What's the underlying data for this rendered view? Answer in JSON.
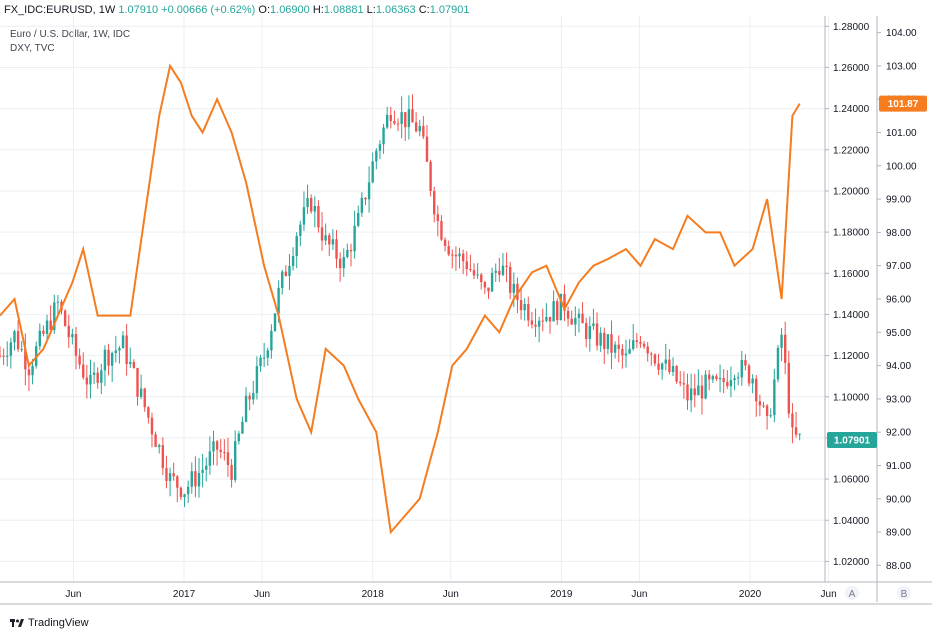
{
  "header": {
    "symbol": "FX_IDC:EURUSD, 1W",
    "price": "1.07910",
    "change": "+0.00666 (+0.62%)",
    "o_label": "O:",
    "o": "1.06900",
    "h_label": "H:",
    "h": "1.08881",
    "l_label": "L:",
    "l": "1.06363",
    "c_label": "C:",
    "c": "1.07901"
  },
  "legend": {
    "main": "Euro / U.S. Dollar, 1W, IDC",
    "overlay": "DXY, TVC"
  },
  "footer": {
    "brand": "TradingView"
  },
  "scale_buttons": {
    "a": "A",
    "b": "B"
  },
  "colors": {
    "up": "#26a69a",
    "down": "#ef5350",
    "dxy": "#f57c1f",
    "grid": "#eceff2"
  },
  "last_labels": {
    "eurusd": "1.07901",
    "dxy": "101.87"
  },
  "chart_data": {
    "type": "candlestick+line",
    "x_range": [
      "2016-01-11",
      "2020-05-25"
    ],
    "x_ticks": [
      {
        "date": "2016-06-01",
        "label": "Jun"
      },
      {
        "date": "2017-01-01",
        "label": "2017"
      },
      {
        "date": "2017-06-01",
        "label": "Jun"
      },
      {
        "date": "2018-01-01",
        "label": "2018"
      },
      {
        "date": "2018-06-01",
        "label": "Jun"
      },
      {
        "date": "2019-01-01",
        "label": "2019"
      },
      {
        "date": "2019-06-01",
        "label": "Jun"
      },
      {
        "date": "2020-01-01",
        "label": "2020"
      },
      {
        "date": "2020-06-01",
        "label": "Jun"
      }
    ],
    "eurusd_axis": {
      "range": [
        1.01,
        1.285
      ],
      "ticks": [
        "1.28000",
        "1.26000",
        "1.24000",
        "1.22000",
        "1.20000",
        "1.18000",
        "1.16000",
        "1.14000",
        "1.12000",
        "1.10000",
        "1.08000",
        "1.06000",
        "1.04000",
        "1.02000"
      ]
    },
    "dxy_axis": {
      "range": [
        87.5,
        104.5
      ],
      "ticks": [
        "104.00",
        "103.00",
        "102.00",
        "101.00",
        "100.00",
        "99.00",
        "98.00",
        "97.00",
        "96.00",
        "95.00",
        "94.00",
        "93.00",
        "92.00",
        "91.00",
        "90.00",
        "89.00",
        "88.00"
      ]
    },
    "eurusd_close": [
      {
        "date": "2016-01-11",
        "value": 1.12
      },
      {
        "date": "2016-02-08",
        "value": 1.13
      },
      {
        "date": "2016-03-07",
        "value": 1.115
      },
      {
        "date": "2016-04-04",
        "value": 1.13
      },
      {
        "date": "2016-05-02",
        "value": 1.145
      },
      {
        "date": "2016-06-06",
        "value": 1.12
      },
      {
        "date": "2016-07-04",
        "value": 1.105
      },
      {
        "date": "2016-08-01",
        "value": 1.12
      },
      {
        "date": "2016-09-05",
        "value": 1.125
      },
      {
        "date": "2016-10-03",
        "value": 1.105
      },
      {
        "date": "2016-11-07",
        "value": 1.08
      },
      {
        "date": "2016-12-05",
        "value": 1.06
      },
      {
        "date": "2017-01-02",
        "value": 1.055
      },
      {
        "date": "2017-02-06",
        "value": 1.065
      },
      {
        "date": "2017-03-06",
        "value": 1.075
      },
      {
        "date": "2017-04-03",
        "value": 1.065
      },
      {
        "date": "2017-05-01",
        "value": 1.095
      },
      {
        "date": "2017-06-05",
        "value": 1.12
      },
      {
        "date": "2017-07-03",
        "value": 1.15
      },
      {
        "date": "2017-08-07",
        "value": 1.18
      },
      {
        "date": "2017-09-04",
        "value": 1.195
      },
      {
        "date": "2017-10-02",
        "value": 1.175
      },
      {
        "date": "2017-11-06",
        "value": 1.165
      },
      {
        "date": "2017-12-04",
        "value": 1.185
      },
      {
        "date": "2018-01-08",
        "value": 1.22
      },
      {
        "date": "2018-02-05",
        "value": 1.24
      },
      {
        "date": "2018-03-05",
        "value": 1.235
      },
      {
        "date": "2018-04-02",
        "value": 1.23
      },
      {
        "date": "2018-05-07",
        "value": 1.185
      },
      {
        "date": "2018-06-04",
        "value": 1.17
      },
      {
        "date": "2018-07-02",
        "value": 1.165
      },
      {
        "date": "2018-08-06",
        "value": 1.15
      },
      {
        "date": "2018-09-03",
        "value": 1.165
      },
      {
        "date": "2018-10-01",
        "value": 1.15
      },
      {
        "date": "2018-11-05",
        "value": 1.14
      },
      {
        "date": "2018-12-03",
        "value": 1.14
      },
      {
        "date": "2019-01-07",
        "value": 1.145
      },
      {
        "date": "2019-02-04",
        "value": 1.135
      },
      {
        "date": "2019-03-04",
        "value": 1.13
      },
      {
        "date": "2019-04-01",
        "value": 1.125
      },
      {
        "date": "2019-05-06",
        "value": 1.118
      },
      {
        "date": "2019-06-03",
        "value": 1.13
      },
      {
        "date": "2019-07-01",
        "value": 1.12
      },
      {
        "date": "2019-08-05",
        "value": 1.11
      },
      {
        "date": "2019-09-02",
        "value": 1.1
      },
      {
        "date": "2019-10-07",
        "value": 1.105
      },
      {
        "date": "2019-11-04",
        "value": 1.105
      },
      {
        "date": "2019-12-02",
        "value": 1.115
      },
      {
        "date": "2020-01-06",
        "value": 1.11
      },
      {
        "date": "2020-02-03",
        "value": 1.085
      },
      {
        "date": "2020-03-02",
        "value": 1.13
      },
      {
        "date": "2020-03-23",
        "value": 1.08
      },
      {
        "date": "2020-04-06",
        "value": 1.079
      }
    ],
    "dxy_close": [
      {
        "date": "2016-01-11",
        "value": 95.5
      },
      {
        "date": "2016-02-08",
        "value": 96.0
      },
      {
        "date": "2016-03-07",
        "value": 94.0
      },
      {
        "date": "2016-04-04",
        "value": 94.5
      },
      {
        "date": "2016-05-02",
        "value": 95.5
      },
      {
        "date": "2016-05-30",
        "value": 96.5
      },
      {
        "date": "2016-06-20",
        "value": 97.5
      },
      {
        "date": "2016-07-18",
        "value": 95.5
      },
      {
        "date": "2016-08-15",
        "value": 95.5
      },
      {
        "date": "2016-09-19",
        "value": 95.5
      },
      {
        "date": "2016-10-17",
        "value": 98.5
      },
      {
        "date": "2016-11-14",
        "value": 101.5
      },
      {
        "date": "2016-12-05",
        "value": 103.0
      },
      {
        "date": "2016-12-26",
        "value": 102.5
      },
      {
        "date": "2017-01-16",
        "value": 101.5
      },
      {
        "date": "2017-02-06",
        "value": 101.0
      },
      {
        "date": "2017-03-06",
        "value": 102.0
      },
      {
        "date": "2017-04-03",
        "value": 101.0
      },
      {
        "date": "2017-05-01",
        "value": 99.5
      },
      {
        "date": "2017-06-05",
        "value": 97.0
      },
      {
        "date": "2017-07-03",
        "value": 95.5
      },
      {
        "date": "2017-08-07",
        "value": 93.0
      },
      {
        "date": "2017-09-04",
        "value": 92.0
      },
      {
        "date": "2017-10-02",
        "value": 94.5
      },
      {
        "date": "2017-11-06",
        "value": 94.0
      },
      {
        "date": "2017-12-04",
        "value": 93.0
      },
      {
        "date": "2018-01-08",
        "value": 92.0
      },
      {
        "date": "2018-02-05",
        "value": 89.0
      },
      {
        "date": "2018-03-05",
        "value": 89.5
      },
      {
        "date": "2018-04-02",
        "value": 90.0
      },
      {
        "date": "2018-05-07",
        "value": 92.0
      },
      {
        "date": "2018-06-04",
        "value": 94.0
      },
      {
        "date": "2018-07-02",
        "value": 94.5
      },
      {
        "date": "2018-08-06",
        "value": 95.5
      },
      {
        "date": "2018-09-03",
        "value": 95.0
      },
      {
        "date": "2018-10-01",
        "value": 96.0
      },
      {
        "date": "2018-11-05",
        "value": 96.8
      },
      {
        "date": "2018-12-03",
        "value": 97.0
      },
      {
        "date": "2019-01-07",
        "value": 95.7
      },
      {
        "date": "2019-02-04",
        "value": 96.5
      },
      {
        "date": "2019-03-04",
        "value": 97.0
      },
      {
        "date": "2019-04-01",
        "value": 97.2
      },
      {
        "date": "2019-05-06",
        "value": 97.5
      },
      {
        "date": "2019-06-03",
        "value": 97.0
      },
      {
        "date": "2019-07-01",
        "value": 97.8
      },
      {
        "date": "2019-08-05",
        "value": 97.5
      },
      {
        "date": "2019-09-02",
        "value": 98.5
      },
      {
        "date": "2019-10-07",
        "value": 98.0
      },
      {
        "date": "2019-11-04",
        "value": 98.0
      },
      {
        "date": "2019-12-02",
        "value": 97.0
      },
      {
        "date": "2020-01-06",
        "value": 97.5
      },
      {
        "date": "2020-02-03",
        "value": 99.0
      },
      {
        "date": "2020-03-02",
        "value": 96.0
      },
      {
        "date": "2020-03-23",
        "value": 101.5
      },
      {
        "date": "2020-04-06",
        "value": 101.87
      }
    ]
  }
}
